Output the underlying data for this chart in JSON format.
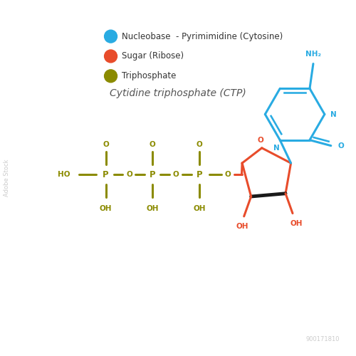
{
  "title": "Cytidine triphosphate (CTP)",
  "legend_items": [
    {
      "label": "Nucleobase  - Pyrimimidine (Cytosine)",
      "color": "#29ABE2"
    },
    {
      "label": "Sugar (Ribose)",
      "color": "#E84C2B"
    },
    {
      "label": "Triphosphate",
      "color": "#8B8B00"
    }
  ],
  "bg_color": "#FFFFFF",
  "phosphate_color": "#8B8B00",
  "ribose_color": "#E84C2B",
  "base_color": "#29ABE2",
  "black_color": "#1a1a1a",
  "watermark_text": "Adobe Stock",
  "watermark_id": "900171810"
}
